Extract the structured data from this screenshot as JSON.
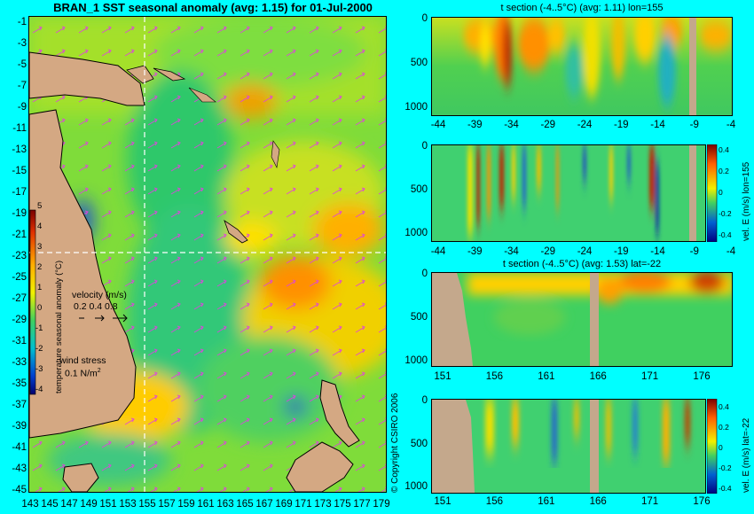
{
  "map": {
    "title": "BRAN_1 SST seasonal anomaly (avg: 1.15) for 01-Jul-2000",
    "y_ticks": [
      "-1",
      "-3",
      "-5",
      "-7",
      "-9",
      "-11",
      "-13",
      "-15",
      "-17",
      "-19",
      "-21",
      "-23",
      "-25",
      "-27",
      "-29",
      "-31",
      "-33",
      "-35",
      "-37",
      "-39",
      "-41",
      "-43",
      "-45"
    ],
    "x_ticks": [
      "143",
      "145",
      "147",
      "149",
      "151",
      "153",
      "155",
      "157",
      "159",
      "161",
      "163",
      "165",
      "167",
      "169",
      "171",
      "173",
      "175",
      "177",
      "179"
    ],
    "colorbar": {
      "label": "temperature seasonal anomaly (°C)",
      "ticks": [
        "5",
        "4",
        "3",
        "2",
        "1",
        "0",
        "-1",
        "-2",
        "-3",
        "-4"
      ],
      "range": [
        -4,
        5
      ]
    },
    "velocity_legend": {
      "title": "velocity (m/s)",
      "values": "0.2 0.4 0.8"
    },
    "wind_legend": {
      "title": "wind stress",
      "value": "0.1 N/m",
      "superscript": "2"
    },
    "crosshair": {
      "lon": 155,
      "lat": -22
    },
    "copyright": "© Copyright CSIRO 2006",
    "colors": {
      "land": "#d4a883",
      "background": "#00ffff",
      "vector": "#e040e0"
    }
  },
  "panels": {
    "p1": {
      "title": "t section (-4..5°C) (avg: 1.11) lon=155",
      "y_ticks": [
        "0",
        "500",
        "1000"
      ],
      "x_ticks": [
        "-44",
        "-39",
        "-34",
        "-29",
        "-24",
        "-19",
        "-14",
        "-9",
        "-4"
      ]
    },
    "p2": {
      "y_ticks": [
        "0",
        "500",
        "1000"
      ],
      "x_ticks": [
        "-44",
        "-39",
        "-34",
        "-29",
        "-24",
        "-19",
        "-14",
        "-9",
        "-4"
      ],
      "side_label": "vel. E (m/s) lon=155",
      "cbar_ticks": [
        "0.4",
        "0.2",
        "0",
        "-0.2",
        "-0.4"
      ]
    },
    "p3": {
      "title": "t section (-4..5°C) (avg: 1.53) lat=-22",
      "y_ticks": [
        "0",
        "500",
        "1000"
      ],
      "x_ticks": [
        "151",
        "156",
        "161",
        "166",
        "171",
        "176"
      ]
    },
    "p4": {
      "y_ticks": [
        "0",
        "500",
        "1000"
      ],
      "x_ticks": [
        "151",
        "156",
        "161",
        "166",
        "171",
        "176"
      ],
      "side_label": "vel. E (m/s) lat=-22",
      "cbar_ticks": [
        "0.4",
        "0.2",
        "0",
        "-0.2",
        "-0.4"
      ]
    }
  }
}
